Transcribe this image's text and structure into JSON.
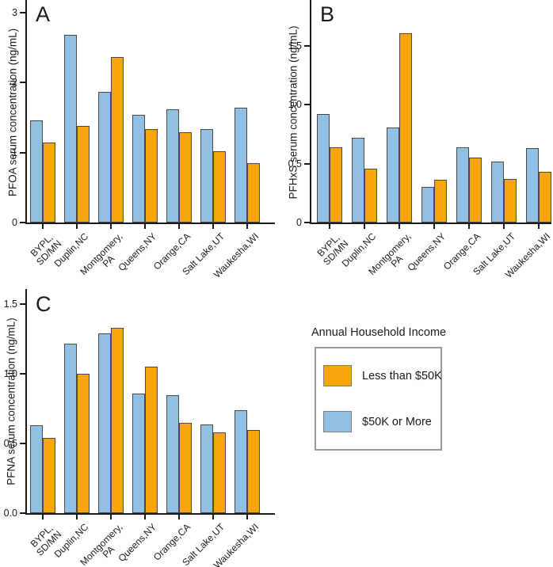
{
  "legend": {
    "title": "Annual Household Income",
    "items": [
      {
        "label": "Less than $50K",
        "color": "#F6A60B"
      },
      {
        "label": "$50K or More",
        "color": "#92C0E3"
      }
    ]
  },
  "colors": {
    "low_income_orange": "#F6A60B",
    "high_income_blue": "#92C0E3",
    "bar_border": "#4a4a4a",
    "axis": "#1a1a1a"
  },
  "chart_data": [
    {
      "type": "bar",
      "panel_label": "A",
      "ylabel": "PFOA serum concentration (ng/mL)",
      "xlabel": "",
      "categories": [
        "BYPL,\nSD/MN",
        "Duplin,NC",
        "Montgomery,\nPA",
        "Queens,NY",
        "Orange,CA",
        "Salt Lake,UT",
        "Waukesha,WI"
      ],
      "ylim": [
        0,
        3.18
      ],
      "grid": false,
      "yticks": [
        {
          "value": 0,
          "label": "0"
        },
        {
          "value": 1,
          "label": "1"
        },
        {
          "value": 2,
          "label": "2"
        },
        {
          "value": 3,
          "label": "3"
        }
      ],
      "series": [
        {
          "name": "$50K or More",
          "color": "#92C0E3",
          "values": [
            1.46,
            2.68,
            1.87,
            1.54,
            1.62,
            1.33,
            1.64
          ]
        },
        {
          "name": "Less than $50K",
          "color": "#F6A60B",
          "values": [
            1.14,
            1.38,
            2.37,
            1.33,
            1.29,
            1.02,
            0.85
          ]
        }
      ]
    },
    {
      "type": "bar",
      "panel_label": "B",
      "ylabel": "PFHxS serum concentration (ng/mL)",
      "xlabel": "",
      "categories": [
        "BYPL,\nSD/MN",
        "Duplin,NC",
        "Montgomery,\nPA",
        "Queens,NY",
        "Orange,CA",
        "Salt Lake,UT",
        "Waukesha,WI"
      ],
      "ylim": [
        0,
        1.89
      ],
      "grid": false,
      "yticks": [
        {
          "value": 0,
          "label": "0"
        },
        {
          "value": 0.5,
          "label": "0.5"
        },
        {
          "value": 1.0,
          "label": "1.0"
        },
        {
          "value": 1.5,
          "label": "1.5"
        }
      ],
      "series": [
        {
          "name": "$50K or More",
          "color": "#92C0E3",
          "values": [
            0.92,
            0.72,
            0.81,
            0.3,
            0.64,
            0.52,
            0.63
          ]
        },
        {
          "name": "Less than $50K",
          "color": "#F6A60B",
          "values": [
            0.64,
            0.46,
            1.61,
            0.36,
            0.55,
            0.37,
            0.43
          ]
        }
      ]
    },
    {
      "type": "bar",
      "panel_label": "C",
      "ylabel": "PFNA serum concentration (ng/mL)",
      "xlabel": "",
      "categories": [
        "BYPL,\nSD/MN",
        "Duplin,NC",
        "Montgomery,\nPA",
        "Queens,NY",
        "Orange,CA",
        "Salt Lake,UT",
        "Waukesha,WI"
      ],
      "ylim": [
        0,
        1.61
      ],
      "grid": false,
      "yticks": [
        {
          "value": 0,
          "label": "0.0"
        },
        {
          "value": 0.5,
          "label": "0.5"
        },
        {
          "value": 1.0,
          "label": "1.0"
        },
        {
          "value": 1.5,
          "label": "1.5"
        }
      ],
      "series": [
        {
          "name": "$50K or More",
          "color": "#92C0E3",
          "values": [
            0.63,
            1.22,
            1.29,
            0.86,
            0.85,
            0.64,
            0.74
          ]
        },
        {
          "name": "Less than $50K",
          "color": "#F6A60B",
          "values": [
            0.54,
            1.0,
            1.33,
            1.05,
            0.65,
            0.58,
            0.6
          ]
        }
      ]
    }
  ]
}
